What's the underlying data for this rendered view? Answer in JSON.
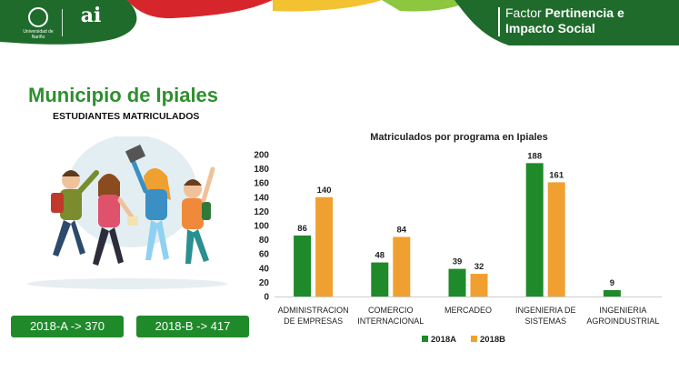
{
  "header": {
    "title_prefix": "Factor",
    "title_bold": "Pertinencia e",
    "title_line2": "Impacto Social",
    "logo_ud_caption": "Universidad de Nariño",
    "logo_ai_mark": "ai",
    "colors": {
      "dark_green": "#1f6b2c",
      "light_green": "#8dc63f",
      "yellow": "#f2c230",
      "red": "#d7262b"
    }
  },
  "page": {
    "title": "Municipio de Ipiales",
    "subtitle": "ESTUDIANTES MATRICULADOS"
  },
  "stats": [
    {
      "label": "2018-A -> 370"
    },
    {
      "label": "2018-B ->  417"
    }
  ],
  "chart_data": {
    "type": "bar",
    "title": "Matriculados por programa en Ipiales",
    "categories": [
      [
        "ADMINISTRACION",
        "DE EMPRESAS"
      ],
      [
        "COMERCIO",
        "INTERNACIONAL"
      ],
      [
        "MERCADEO"
      ],
      [
        "INGENIERIA DE",
        "SISTEMAS"
      ],
      [
        "INGENIERIA",
        "AGROINDUSTRIAL"
      ]
    ],
    "series": [
      {
        "name": "2018A",
        "color": "#1f8a2a",
        "values": [
          86,
          48,
          39,
          188,
          9
        ]
      },
      {
        "name": "2018B",
        "color": "#f0a030",
        "values": [
          140,
          84,
          32,
          161,
          null
        ]
      }
    ],
    "ylim": [
      0,
      200
    ],
    "yticks": [
      0,
      20,
      40,
      60,
      80,
      100,
      120,
      140,
      160,
      180,
      200
    ],
    "grid": false,
    "legend": "bottom"
  }
}
